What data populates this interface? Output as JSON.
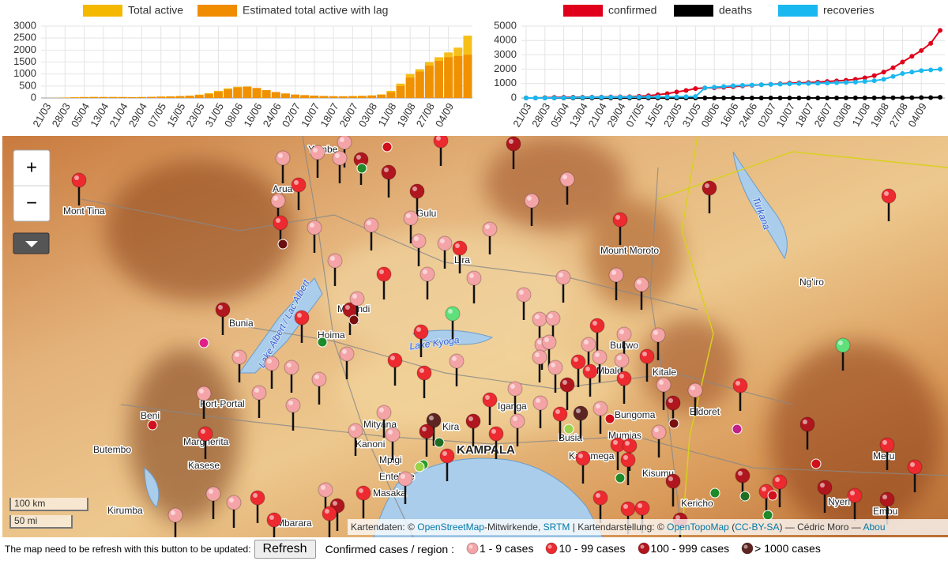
{
  "chart_data": [
    {
      "type": "bar",
      "categories": [
        "21/03",
        null,
        "28/03",
        null,
        "05/04",
        null,
        "13/04",
        null,
        "21/04",
        null,
        "29/04",
        null,
        "07/05",
        null,
        "15/05",
        null,
        "23/05",
        null,
        "31/05",
        null,
        "08/06",
        null,
        "16/06",
        null,
        "24/06",
        null,
        "02/07",
        null,
        "10/07",
        null,
        "18/07",
        null,
        "26/07",
        null,
        "03/08",
        null,
        "11/08",
        null,
        "19/08",
        null,
        "27/08",
        null,
        "04/09",
        null,
        null
      ],
      "series": [
        {
          "name": "Total active",
          "color": "#f5b800",
          "values": [
            0,
            5,
            20,
            30,
            40,
            45,
            40,
            40,
            40,
            35,
            40,
            50,
            60,
            70,
            80,
            100,
            140,
            200,
            300,
            400,
            470,
            480,
            400,
            300,
            220,
            170,
            130,
            110,
            90,
            80,
            70,
            70,
            80,
            90,
            110,
            150,
            300,
            600,
            1000,
            1200,
            1500,
            1700,
            1900,
            2100,
            2600
          ]
        },
        {
          "name": "Estimated total active with lag",
          "color": "#f08c00",
          "values": [
            0,
            3,
            15,
            25,
            35,
            40,
            40,
            40,
            38,
            35,
            38,
            45,
            55,
            65,
            75,
            90,
            120,
            170,
            260,
            360,
            440,
            470,
            420,
            330,
            250,
            190,
            145,
            120,
            100,
            85,
            75,
            70,
            75,
            85,
            100,
            130,
            240,
            500,
            850,
            1100,
            1350,
            1550,
            1700,
            1750,
            1800
          ]
        }
      ],
      "ylim": [
        0,
        3000
      ],
      "yticks": [
        0,
        500,
        1000,
        1500,
        2000,
        2500,
        3000
      ],
      "grid": true
    },
    {
      "type": "line",
      "categories": [
        "21/03",
        null,
        "28/03",
        null,
        "05/04",
        null,
        "13/04",
        null,
        "21/04",
        null,
        "29/04",
        null,
        "07/05",
        null,
        "15/05",
        null,
        "23/05",
        null,
        "31/05",
        null,
        "08/06",
        null,
        "16/06",
        null,
        "24/06",
        null,
        "02/07",
        null,
        "10/07",
        null,
        "18/07",
        null,
        "26/07",
        null,
        "03/08",
        null,
        "11/08",
        null,
        "19/08",
        null,
        "27/08",
        null,
        "04/09",
        null,
        null
      ],
      "series": [
        {
          "name": "confirmed",
          "color": "#e0001b",
          "values": [
            0,
            2,
            20,
            40,
            50,
            55,
            55,
            60,
            65,
            75,
            80,
            90,
            120,
            160,
            230,
            300,
            420,
            520,
            650,
            700,
            710,
            740,
            780,
            840,
            880,
            920,
            950,
            990,
            1030,
            1050,
            1070,
            1100,
            1150,
            1190,
            1230,
            1300,
            1400,
            1550,
            1800,
            2100,
            2500,
            2900,
            3300,
            3800,
            4700
          ]
        },
        {
          "name": "deaths",
          "color": "#000000",
          "values": [
            0,
            0,
            0,
            0,
            0,
            0,
            0,
            0,
            0,
            0,
            0,
            0,
            0,
            0,
            0,
            0,
            0,
            0,
            0,
            0,
            0,
            0,
            0,
            0,
            0,
            0,
            0,
            0,
            0,
            0,
            0,
            0,
            2,
            3,
            5,
            5,
            8,
            10,
            12,
            15,
            17,
            20,
            25,
            30,
            45
          ]
        },
        {
          "name": "recoveries",
          "color": "#1ab8f0",
          "values": [
            0,
            0,
            0,
            5,
            15,
            25,
            35,
            45,
            50,
            55,
            60,
            60,
            65,
            70,
            75,
            80,
            85,
            90,
            100,
            700,
            750,
            800,
            850,
            880,
            900,
            920,
            940,
            960,
            980,
            1000,
            1010,
            1020,
            1040,
            1060,
            1080,
            1100,
            1150,
            1200,
            1300,
            1500,
            1700,
            1800,
            1900,
            1950,
            2000
          ]
        }
      ],
      "ylim": [
        0,
        5000
      ],
      "yticks": [
        0,
        1000,
        2000,
        3000,
        4000,
        5000
      ],
      "grid": true
    }
  ],
  "map": {
    "zoom_in": "+",
    "zoom_out": "−",
    "labels": [
      "Mont Tina",
      "Yumbe",
      "Arua",
      "Gulu",
      "Lira",
      "Mount Moroto",
      "Ng'iro",
      "Bunia",
      "Hoima",
      "Masindi",
      "Bukwo",
      "Kitale",
      "Eldoret",
      "Beni",
      "Fort-Portal",
      "Butembo",
      "Margherita",
      "Kasese",
      "Mityana",
      "Kanoni",
      "Mpigi",
      "Entebbe",
      "Kira",
      "KAMPALA",
      "Masaka",
      "Kirumba",
      "Mbarara",
      "Kisumu",
      "Kakamega",
      "Bungoma",
      "Mumias",
      "Busia",
      "Iganga",
      "Kericho",
      "Meru",
      "Embu",
      "Nyeri",
      "Mbale"
    ],
    "lakes": [
      "Lake Albert / Lac Albert",
      "Lake Kyoga",
      "Turkana"
    ],
    "scale": [
      "100 km",
      "50 mi"
    ],
    "attribution": [
      {
        "text": "Kartendaten: © "
      },
      {
        "text": "OpenStreetMap",
        "link": true
      },
      {
        "text": "-Mitwirkende, "
      },
      {
        "text": "SRTM",
        "link": true
      },
      {
        "text": " | Kartendarstellung: © "
      },
      {
        "text": "OpenTopoMap",
        "link": true
      },
      {
        "text": " ("
      },
      {
        "text": "CC-BY-SA",
        "link": true
      },
      {
        "text": ") — Cédric Moro — "
      },
      {
        "text": "Abou",
        "link": true
      }
    ]
  },
  "footer": {
    "note": "The map need to be refresh with this button to be updated:",
    "button": "Refresh",
    "legend_title": "Confirmed cases / region :",
    "legend": [
      {
        "label": "1 - 9 cases",
        "color": "#f4a3a6"
      },
      {
        "label": "10 - 99 cases",
        "color": "#ec2a30"
      },
      {
        "label": "100 - 999 cases",
        "color": "#b0161d"
      },
      {
        "label": "> 1000 cases",
        "color": "#5e2422"
      }
    ]
  }
}
